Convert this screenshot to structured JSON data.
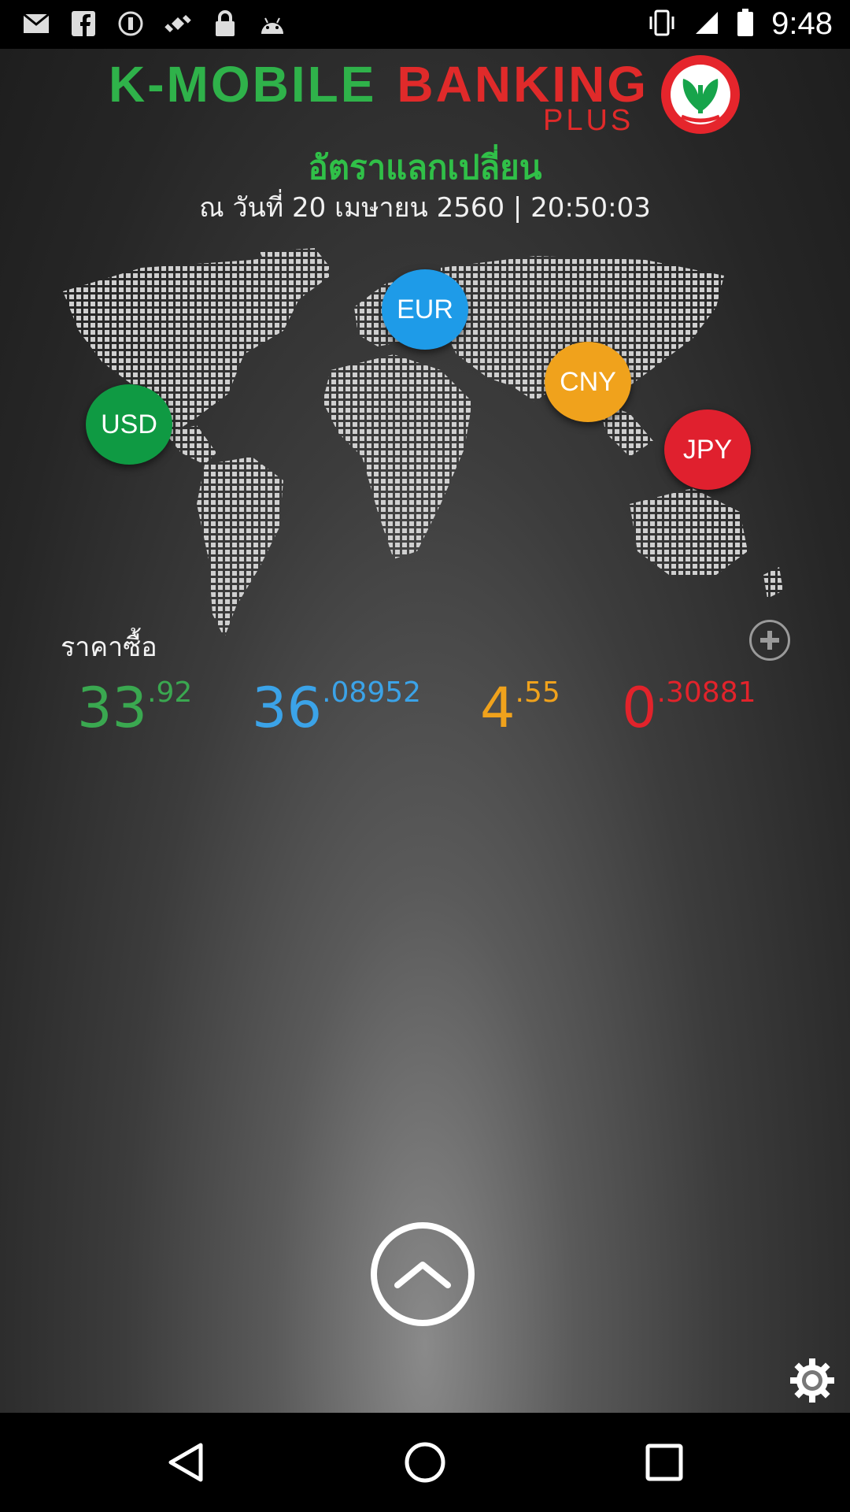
{
  "status_bar": {
    "time": "9:48",
    "left_icons": [
      "mail-icon",
      "facebook-icon",
      "info-icon",
      "fake-gps-icon",
      "lock-icon",
      "android-icon"
    ],
    "right_icons": [
      "vibrate-icon",
      "signal-icon",
      "battery-icon"
    ]
  },
  "header": {
    "brand_main": "K-MOBILE",
    "brand_secondary": "BANKING",
    "brand_plus": "PLUS",
    "logo": "kasikorn-logo",
    "title": "อัตราแลกเปลี่ยน",
    "subtitle": "ณ วันที่ 20 เมษายน 2560 | 20:50:03"
  },
  "currencies": [
    {
      "code": "USD",
      "color": "#0f9a43"
    },
    {
      "code": "EUR",
      "color": "#1e9be8"
    },
    {
      "code": "CNY",
      "color": "#f0a21c"
    },
    {
      "code": "JPY",
      "color": "#e0202e"
    }
  ],
  "rates": {
    "label": "ราคาซื้อ",
    "items": [
      {
        "int": "33",
        "dec": ".92",
        "color": "#3aa850"
      },
      {
        "int": "36",
        "dec": ".08952",
        "color": "#3ba3e8"
      },
      {
        "int": "4",
        "dec": ".55",
        "color": "#f0a21c"
      },
      {
        "int": "0",
        "dec": ".30881",
        "color": "#e2232b"
      }
    ]
  },
  "controls": {
    "add_icon": "plus-circle-icon",
    "expand_icon": "chevron-up-icon",
    "settings_icon": "gear-icon"
  },
  "nav": [
    "back-icon",
    "home-icon",
    "recents-icon"
  ]
}
